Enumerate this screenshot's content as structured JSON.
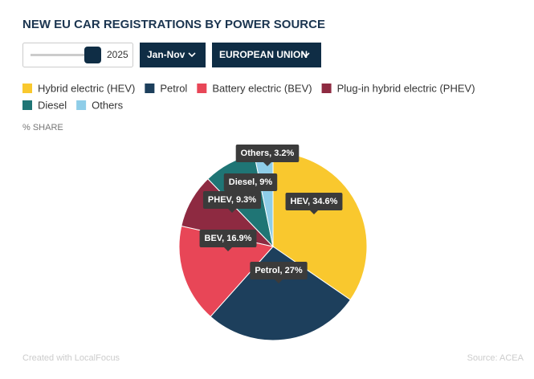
{
  "chart_data": {
    "type": "pie",
    "title": "NEW EU CAR REGISTRATIONS BY POWER SOURCE",
    "controls": {
      "year": "2025",
      "period": "Jan-Nov",
      "region": "EUROPEAN UNION"
    },
    "value_axis_label": "% SHARE",
    "categories": [
      "Hybrid electric (HEV)",
      "Petrol",
      "Battery electric (BEV)",
      "Plug-in hybrid electric (PHEV)",
      "Diesel",
      "Others"
    ],
    "values": [
      34.6,
      27,
      16.9,
      9.3,
      9,
      3.2
    ],
    "value_labels": [
      "HEV, 34.6%",
      "Petrol, 27%",
      "BEV, 16.9%",
      "PHEV, 9.3%",
      "Diesel, 9%",
      "Others, 3.2%"
    ],
    "colors": [
      "#f9c82e",
      "#1d3f5c",
      "#e84657",
      "#8e2a41",
      "#1f7575",
      "#8ecde8"
    ],
    "footer_left": "Created with LocalFocus",
    "footer_right": "Source: ACEA"
  }
}
